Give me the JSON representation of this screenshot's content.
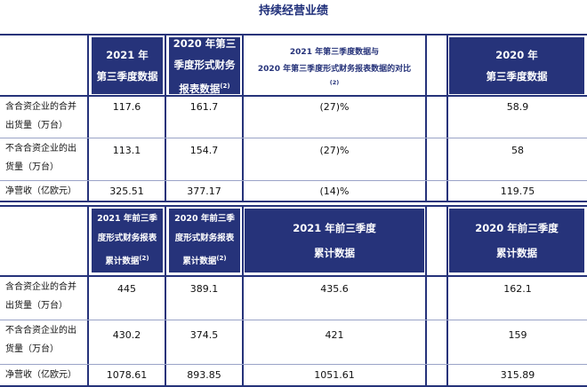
{
  "title": "持续经营业绩",
  "table1": {
    "headers": {
      "col1": [
        "2021 年",
        "第三季度数据"
      ],
      "col2": [
        "2020 年第三",
        "季度形式财务",
        "报表数据"
      ],
      "col2_sup": "(2)",
      "col3": [
        "2021 年第三季度数据与",
        "2020 年第三季度形式财务报表数据的对比"
      ],
      "col3_sup": "(2)",
      "col4": [
        "2020 年",
        "第三季度数据"
      ]
    },
    "rows": [
      {
        "label": [
          "含合资企业的合并",
          "出货量（万台）"
        ],
        "v1": "117.6",
        "v2": "161.7",
        "v3": "(27)%",
        "v4": "58.9"
      },
      {
        "label": [
          "不含合资企业的出",
          "货量（万台）"
        ],
        "v1": "113.1",
        "v2": "154.7",
        "v3": "(27)%",
        "v4": "58"
      },
      {
        "label": [
          "净营收（亿欧元）"
        ],
        "v1": "325.51",
        "v2": "377.17",
        "v3": "(14)%",
        "v4": "119.75"
      }
    ]
  },
  "table2": {
    "headers": {
      "col1": [
        "2021 年前三季",
        "度形式财务报表",
        "累计数据"
      ],
      "col1_sup": "(2)",
      "col2": [
        "2020 年前三季",
        "度形式财务报表",
        "累计数据"
      ],
      "col2_sup": "(2)",
      "col3": [
        "2021 年前三季度",
        "累计数据"
      ],
      "col4": [
        "2020 年前三季度",
        "累计数据"
      ]
    },
    "rows": [
      {
        "label": [
          "含合资企业的合并",
          "出货量（万台）"
        ],
        "v1": "445",
        "v2": "389.1",
        "v3": "435.6",
        "v4": "162.1"
      },
      {
        "label": [
          "不含合资企业的出",
          "货量（万台）"
        ],
        "v1": "430.2",
        "v2": "374.5",
        "v3": "421",
        "v4": "159"
      },
      {
        "label": [
          "净营收（亿欧元）"
        ],
        "v1": "1078.61",
        "v2": "893.85",
        "v3": "1051.61",
        "v4": "315.89"
      }
    ]
  }
}
